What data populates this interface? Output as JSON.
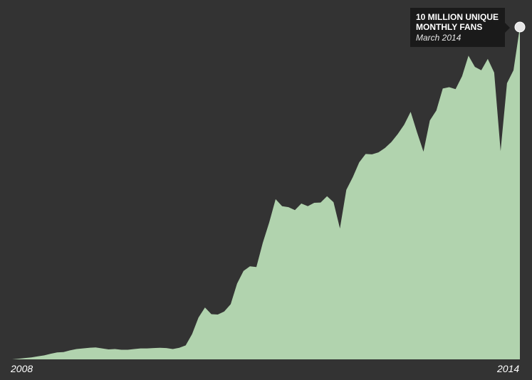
{
  "chart_data": {
    "type": "area",
    "x_start": "2008",
    "x_end": "2014",
    "xtick_labels": [
      "2008",
      "2014"
    ],
    "values": [
      0.0,
      0.02,
      0.04,
      0.06,
      0.09,
      0.12,
      0.17,
      0.21,
      0.22,
      0.27,
      0.31,
      0.33,
      0.35,
      0.36,
      0.33,
      0.3,
      0.31,
      0.29,
      0.29,
      0.31,
      0.33,
      0.33,
      0.34,
      0.35,
      0.34,
      0.31,
      0.35,
      0.42,
      0.76,
      1.26,
      1.56,
      1.36,
      1.35,
      1.44,
      1.66,
      2.28,
      2.66,
      2.8,
      2.78,
      3.51,
      4.12,
      4.82,
      4.61,
      4.58,
      4.49,
      4.69,
      4.61,
      4.71,
      4.72,
      4.91,
      4.73,
      3.94,
      5.1,
      5.48,
      5.93,
      6.18,
      6.17,
      6.23,
      6.36,
      6.54,
      6.78,
      7.06,
      7.45,
      6.83,
      6.25,
      7.19,
      7.49,
      8.15,
      8.19,
      8.13,
      8.52,
      9.14,
      8.8,
      8.7,
      9.04,
      8.63,
      6.27,
      8.31,
      8.7,
      10.0
    ],
    "ylim": [
      0,
      10
    ],
    "grid": false,
    "legend": "none",
    "fill_color": "#b1d3ae",
    "background_color": "#333333",
    "highlight_point": {
      "title": "10 MILLION UNIQUE\nMONTHLY FANS",
      "date": "March 2014",
      "value": 10
    }
  }
}
